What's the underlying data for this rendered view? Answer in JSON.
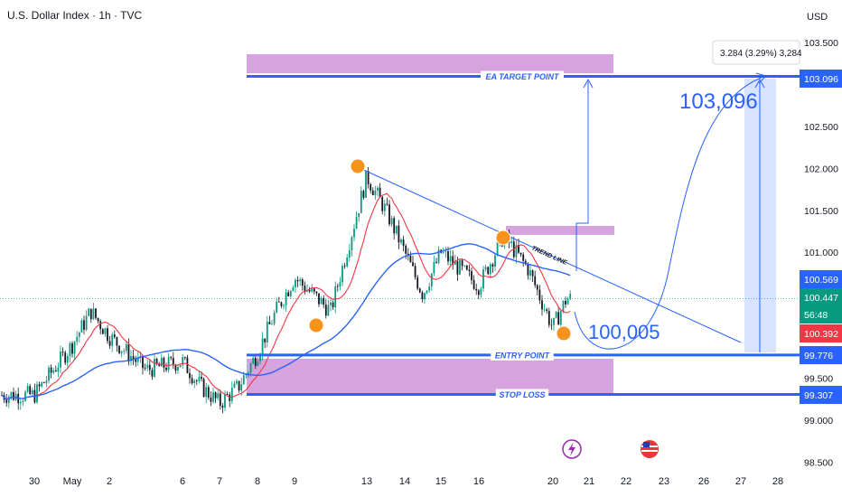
{
  "chart_data": {
    "type": "candlestick",
    "title": "U.S. Dollar Index · 1h · TVC",
    "currency": "USD",
    "ylim": [
      98.5,
      103.5
    ],
    "y_ticks": [
      103.5,
      102.5,
      102.0,
      101.5,
      101.0,
      99.5,
      99.0,
      98.5
    ],
    "y_tick_labels": [
      "103.500",
      "102.500",
      "102.000",
      "101.500",
      "101.000",
      "99.500",
      "99.000",
      "98.500"
    ],
    "x_tick_labels": [
      "30",
      "May",
      "2",
      "6",
      "7",
      "8",
      "9",
      "13",
      "14",
      "15",
      "16",
      "20",
      "21",
      "22",
      "23",
      "26",
      "27",
      "28"
    ],
    "price_tags": [
      {
        "label": "103.096",
        "value": 103.096,
        "color": "#2962ff"
      },
      {
        "label": "100.569",
        "value": 100.569,
        "color": "#2962ff"
      },
      {
        "label": "100.447",
        "value": 100.447,
        "color": "#089981"
      },
      {
        "label": "56:48",
        "value": 100.3,
        "color": "#089981"
      },
      {
        "label": "100.392",
        "value": 100.392,
        "color": "#f23645"
      },
      {
        "label": "99.776",
        "value": 99.776,
        "color": "#2962ff"
      },
      {
        "label": "99.307",
        "value": 99.307,
        "color": "#2962ff"
      }
    ],
    "levels": [
      {
        "label": "EA TARGET POINT",
        "value": 103.096
      },
      {
        "label": "ENTRY POINT",
        "value": 99.776
      },
      {
        "label": "STOP LOSS",
        "value": 99.307
      }
    ],
    "annotations": {
      "trend_line": "TREND LINE",
      "target_text": "103,096",
      "entry_text": "100,005",
      "measure": "3.284 (3.29%) 3,284"
    },
    "close_path": [
      {
        "x": "30",
        "y": 99.3
      },
      {
        "x": "May",
        "y": 99.9
      },
      {
        "x": "May",
        "y": 100.3
      },
      {
        "x": "2",
        "y": 100.0
      },
      {
        "x": "2",
        "y": 99.6
      },
      {
        "x": "6",
        "y": 99.7
      },
      {
        "x": "6",
        "y": 99.4
      },
      {
        "x": "7",
        "y": 99.2
      },
      {
        "x": "7",
        "y": 99.4
      },
      {
        "x": "8",
        "y": 99.8
      },
      {
        "x": "8",
        "y": 100.3
      },
      {
        "x": "9",
        "y": 100.7
      },
      {
        "x": "9",
        "y": 100.3
      },
      {
        "x": "13",
        "y": 101.9
      },
      {
        "x": "13",
        "y": 101.5
      },
      {
        "x": "14",
        "y": 101.0
      },
      {
        "x": "14",
        "y": 100.5
      },
      {
        "x": "15",
        "y": 101.0
      },
      {
        "x": "15",
        "y": 100.8
      },
      {
        "x": "16",
        "y": 100.6
      },
      {
        "x": "16",
        "y": 101.2
      },
      {
        "x": "16",
        "y": 100.8
      },
      {
        "x": "20",
        "y": 100.1
      },
      {
        "x": "20",
        "y": 100.45
      }
    ],
    "colors": {
      "up": "#089981",
      "down": "#131722",
      "ma_fast": "#f23645",
      "ma_slow": "#2962ff",
      "zone": "#ce93d8",
      "marker": "#f7931a"
    }
  }
}
